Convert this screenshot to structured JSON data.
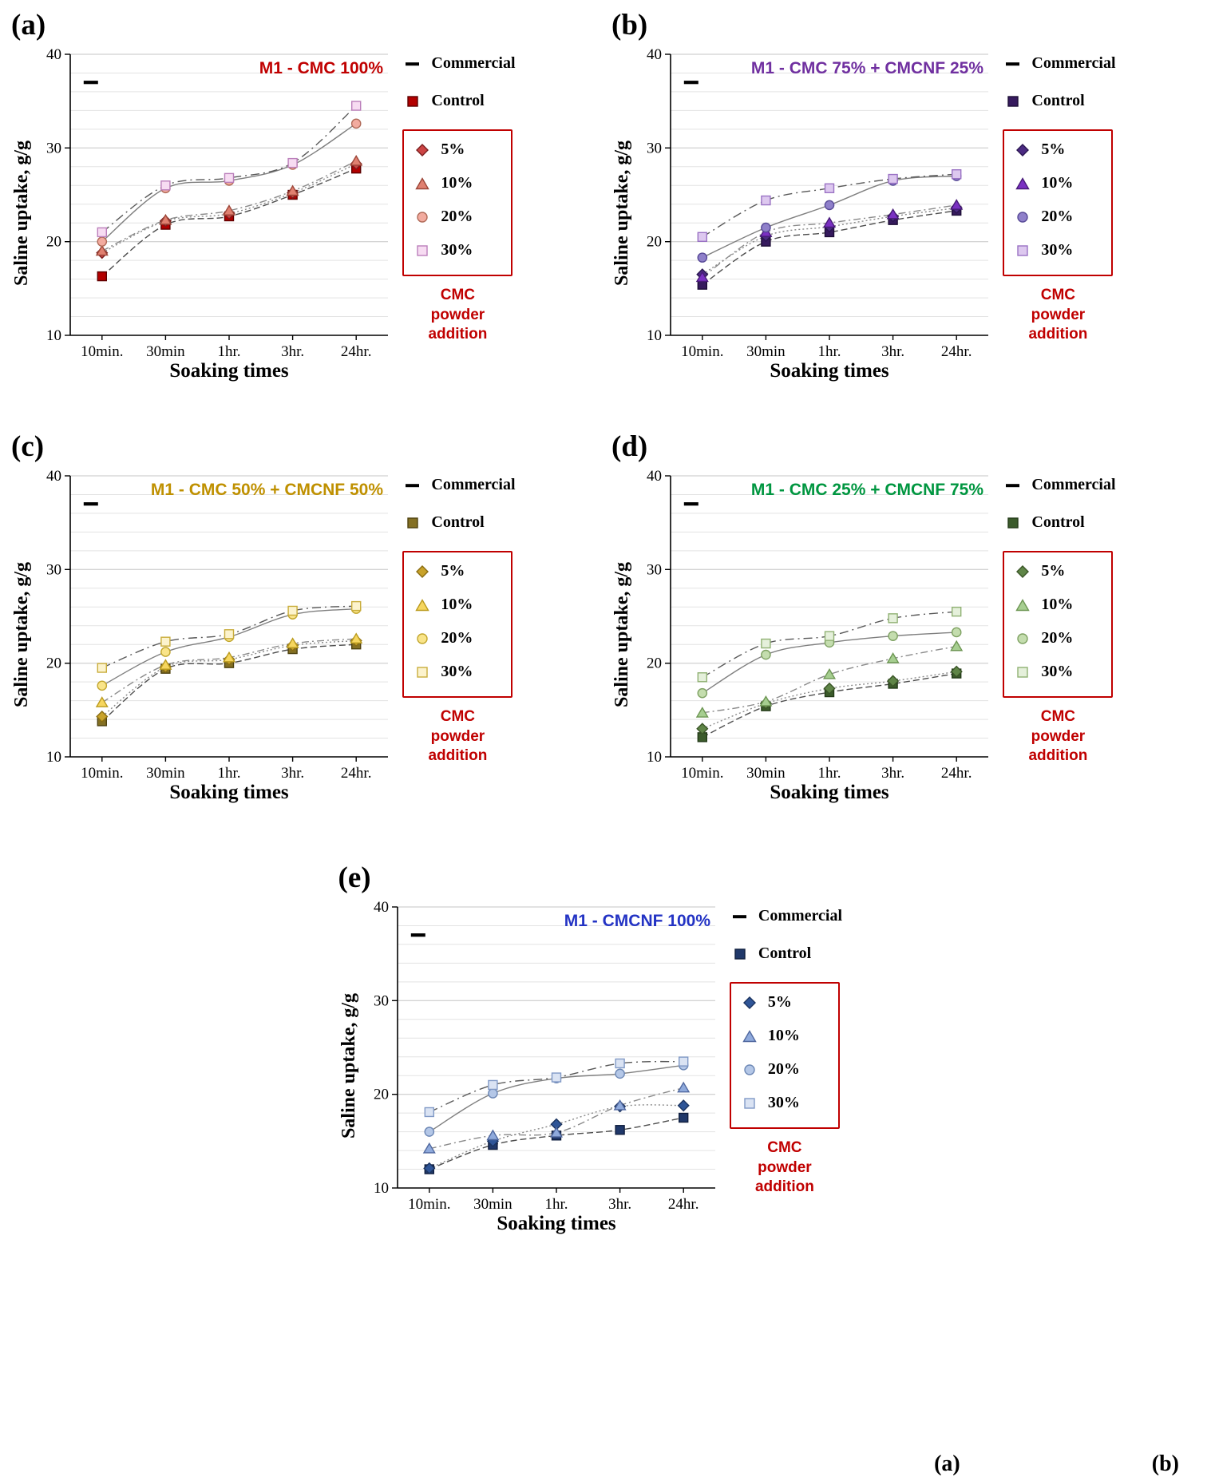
{
  "figure": {
    "caption_fragment": [
      "(a)",
      "(b)"
    ],
    "note_color": "#c00000",
    "box_color": "#c00000"
  },
  "chart_data": [
    {
      "type": "line",
      "panel_label": "(a)",
      "title": "M1 - CMC 100%",
      "title_color": "#c00000",
      "xlabel": "Soaking times",
      "ylabel": "Saline uptake, g/g",
      "ylim": [
        10,
        40
      ],
      "yticks": [
        10,
        20,
        30,
        40
      ],
      "grid": "horizontal",
      "legend_position": "right",
      "categories": [
        "10min.",
        "30min",
        "1hr.",
        "3hr.",
        "24hr."
      ],
      "commercial": {
        "name": "Commercial",
        "value": 37
      },
      "note_lines": [
        "CMC",
        "powder",
        "addition"
      ],
      "series": [
        {
          "name": "Control",
          "marker": "square",
          "fill": "#b30000",
          "stroke": "#5e0000",
          "line_color": "#4d4d4d",
          "line_dash": "8 4",
          "values": [
            16.3,
            21.8,
            22.7,
            25.0,
            27.8
          ]
        },
        {
          "name": "5%",
          "marker": "diamond",
          "fill": "#cc4444",
          "stroke": "#7a1f1f",
          "line_color": "#8a8a8a",
          "line_dash": "2 3",
          "values": [
            18.8,
            22.2,
            23.0,
            25.2,
            28.3
          ]
        },
        {
          "name": "10%",
          "marker": "triangle",
          "fill": "#e08070",
          "stroke": "#9c4638",
          "line_color": "#8a8a8a",
          "line_dash": "9 4 2 4",
          "values": [
            19.0,
            22.3,
            23.3,
            25.4,
            28.6
          ]
        },
        {
          "name": "20%",
          "marker": "circle",
          "fill": "#f2ab9f",
          "stroke": "#b06a58",
          "line_color": "#7f7f7f",
          "line_dash": "",
          "values": [
            20.0,
            25.7,
            26.5,
            28.2,
            32.6
          ]
        },
        {
          "name": "30%",
          "marker": "square-open",
          "fill": "#f7dcf2",
          "stroke": "#bb7fbb",
          "line_color": "#595959",
          "line_dash": "11 5 2 5",
          "values": [
            21.0,
            26.0,
            26.8,
            28.4,
            34.5
          ]
        }
      ]
    },
    {
      "type": "line",
      "panel_label": "(b)",
      "title": "M1 - CMC 75% + CMCNF 25%",
      "title_color": "#7030a0",
      "xlabel": "Soaking times",
      "ylabel": "Saline uptake, g/g",
      "ylim": [
        10,
        40
      ],
      "yticks": [
        10,
        20,
        30,
        40
      ],
      "grid": "horizontal",
      "legend_position": "right",
      "categories": [
        "10min.",
        "30min",
        "1hr.",
        "3hr.",
        "24hr."
      ],
      "commercial": {
        "name": "Commercial",
        "value": 37
      },
      "note_lines": [
        "CMC",
        "powder",
        "addition"
      ],
      "series": [
        {
          "name": "Control",
          "marker": "square",
          "fill": "#361a5e",
          "stroke": "#1d0e36",
          "line_color": "#4d4d4d",
          "line_dash": "8 4",
          "values": [
            15.4,
            20.0,
            21.0,
            22.3,
            23.3
          ]
        },
        {
          "name": "5%",
          "marker": "diamond",
          "fill": "#4b2a82",
          "stroke": "#2a1650",
          "line_color": "#8a8a8a",
          "line_dash": "2 3",
          "values": [
            16.5,
            20.6,
            21.6,
            22.7,
            23.6
          ]
        },
        {
          "name": "10%",
          "marker": "triangle",
          "fill": "#7a30c2",
          "stroke": "#481a78",
          "line_color": "#8a8a8a",
          "line_dash": "9 4 2 4",
          "values": [
            16.2,
            21.0,
            22.0,
            22.9,
            23.9
          ]
        },
        {
          "name": "20%",
          "marker": "circle",
          "fill": "#8f80ca",
          "stroke": "#584a97",
          "line_color": "#7f7f7f",
          "line_dash": "",
          "values": [
            18.3,
            21.5,
            23.9,
            26.5,
            27.0
          ]
        },
        {
          "name": "30%",
          "marker": "square-open",
          "fill": "#ddc8ef",
          "stroke": "#9a72c4",
          "line_color": "#595959",
          "line_dash": "11 5 2 5",
          "values": [
            20.5,
            24.4,
            25.7,
            26.7,
            27.2
          ]
        }
      ]
    },
    {
      "type": "line",
      "panel_label": "(c)",
      "title": "M1 - CMC 50% + CMCNF 50%",
      "title_color": "#bf9000",
      "xlabel": "Soaking times",
      "ylabel": "Saline uptake, g/g",
      "ylim": [
        10,
        40
      ],
      "yticks": [
        10,
        20,
        30,
        40
      ],
      "grid": "horizontal",
      "legend_position": "right",
      "categories": [
        "10min.",
        "30min",
        "1hr.",
        "3hr.",
        "24hr."
      ],
      "commercial": {
        "name": "Commercial",
        "value": 37
      },
      "note_lines": [
        "CMC",
        "powder",
        "addition"
      ],
      "series": [
        {
          "name": "Control",
          "marker": "square",
          "fill": "#847024",
          "stroke": "#4f420f",
          "line_color": "#4d4d4d",
          "line_dash": "8 4",
          "values": [
            13.8,
            19.4,
            20.0,
            21.5,
            22.0
          ]
        },
        {
          "name": "5%",
          "marker": "diamond",
          "fill": "#c8a22a",
          "stroke": "#8a6d12",
          "line_color": "#8a8a8a",
          "line_dash": "2 3",
          "values": [
            14.3,
            19.6,
            20.4,
            21.9,
            22.4
          ]
        },
        {
          "name": "10%",
          "marker": "triangle",
          "fill": "#f6d65f",
          "stroke": "#bb9b1e",
          "line_color": "#8a8a8a",
          "line_dash": "9 4 2 4",
          "values": [
            15.8,
            19.8,
            20.6,
            22.1,
            22.6
          ]
        },
        {
          "name": "20%",
          "marker": "circle",
          "fill": "#f9e489",
          "stroke": "#c2a62e",
          "line_color": "#7f7f7f",
          "line_dash": "",
          "values": [
            17.6,
            21.2,
            22.8,
            25.2,
            25.8
          ]
        },
        {
          "name": "30%",
          "marker": "square-open",
          "fill": "#fcf3cd",
          "stroke": "#c9ad3c",
          "line_color": "#595959",
          "line_dash": "11 5 2 5",
          "values": [
            19.5,
            22.3,
            23.1,
            25.6,
            26.1
          ]
        }
      ]
    },
    {
      "type": "line",
      "panel_label": "(d)",
      "title": "M1 - CMC 25% + CMCNF 75%",
      "title_color": "#009640",
      "xlabel": "Soaking times",
      "ylabel": "Saline uptake, g/g",
      "ylim": [
        10,
        40
      ],
      "yticks": [
        10,
        20,
        30,
        40
      ],
      "grid": "horizontal",
      "legend_position": "right",
      "categories": [
        "10min.",
        "30min",
        "1hr.",
        "3hr.",
        "24hr."
      ],
      "commercial": {
        "name": "Commercial",
        "value": 37
      },
      "note_lines": [
        "CMC",
        "powder",
        "addition"
      ],
      "series": [
        {
          "name": "Control",
          "marker": "square",
          "fill": "#3b5b2b",
          "stroke": "#233a18",
          "line_color": "#4d4d4d",
          "line_dash": "8 4",
          "values": [
            12.1,
            15.4,
            16.9,
            17.8,
            18.9
          ]
        },
        {
          "name": "5%",
          "marker": "diamond",
          "fill": "#5f8547",
          "stroke": "#3a5527",
          "line_color": "#8a8a8a",
          "line_dash": "2 3",
          "values": [
            13.0,
            15.7,
            17.3,
            18.1,
            19.1
          ]
        },
        {
          "name": "10%",
          "marker": "triangle",
          "fill": "#a6ce90",
          "stroke": "#6d9653",
          "line_color": "#8a8a8a",
          "line_dash": "9 4 2 4",
          "values": [
            14.7,
            15.9,
            18.8,
            20.5,
            21.8
          ]
        },
        {
          "name": "20%",
          "marker": "circle",
          "fill": "#c4ddae",
          "stroke": "#7fa263",
          "line_color": "#7f7f7f",
          "line_dash": "",
          "values": [
            16.8,
            20.9,
            22.2,
            22.9,
            23.3
          ]
        },
        {
          "name": "30%",
          "marker": "square-open",
          "fill": "#e5f0db",
          "stroke": "#90b173",
          "line_color": "#595959",
          "line_dash": "11 5 2 5",
          "values": [
            18.5,
            22.1,
            22.9,
            24.8,
            25.5
          ]
        }
      ]
    },
    {
      "type": "line",
      "panel_label": "(e)",
      "title": "M1 - CMCNF 100%",
      "title_color": "#2333c4",
      "xlabel": "Soaking times",
      "ylabel": "Saline uptake, g/g",
      "ylim": [
        10,
        40
      ],
      "yticks": [
        10,
        20,
        30,
        40
      ],
      "grid": "horizontal",
      "legend_position": "right",
      "categories": [
        "10min.",
        "30min",
        "1hr.",
        "3hr.",
        "24hr."
      ],
      "commercial": {
        "name": "Commercial",
        "value": 37
      },
      "note_lines": [
        "CMC",
        "powder",
        "addition"
      ],
      "series": [
        {
          "name": "Control",
          "marker": "square",
          "fill": "#20386a",
          "stroke": "#101e3e",
          "line_color": "#4d4d4d",
          "line_dash": "8 4",
          "values": [
            12.0,
            14.6,
            15.6,
            16.2,
            17.5
          ]
        },
        {
          "name": "5%",
          "marker": "diamond",
          "fill": "#2f5597",
          "stroke": "#1b335f",
          "line_color": "#8a8a8a",
          "line_dash": "2 3",
          "values": [
            12.1,
            15.0,
            16.8,
            18.7,
            18.8
          ]
        },
        {
          "name": "10%",
          "marker": "triangle",
          "fill": "#8faadc",
          "stroke": "#50689f",
          "line_color": "#8a8a8a",
          "line_dash": "9 4 2 4",
          "values": [
            14.2,
            15.6,
            15.9,
            18.8,
            20.7
          ]
        },
        {
          "name": "20%",
          "marker": "circle",
          "fill": "#b4c7e7",
          "stroke": "#6c87b5",
          "line_color": "#7f7f7f",
          "line_dash": "",
          "values": [
            16.0,
            20.1,
            21.7,
            22.2,
            23.1
          ]
        },
        {
          "name": "30%",
          "marker": "square-open",
          "fill": "#dae3f3",
          "stroke": "#8099c6",
          "line_color": "#595959",
          "line_dash": "11 5 2 5",
          "values": [
            18.1,
            21.0,
            21.8,
            23.3,
            23.5
          ]
        }
      ]
    }
  ]
}
